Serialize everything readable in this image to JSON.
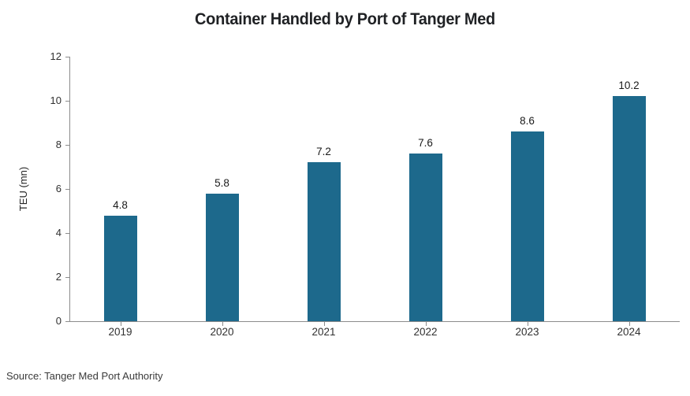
{
  "chart_data": {
    "type": "bar",
    "title": "Container Handled by Port of Tanger Med",
    "categories": [
      "2019",
      "2020",
      "2021",
      "2022",
      "2023",
      "2024"
    ],
    "values": [
      4.8,
      5.8,
      7.2,
      7.6,
      8.6,
      10.2
    ],
    "value_labels": [
      "4.8",
      "5.8",
      "7.2",
      "7.6",
      "8.6",
      "10.2"
    ],
    "xlabel": "",
    "ylabel": "TEU (mn)",
    "ylim": [
      0,
      12
    ],
    "yticks": [
      0,
      2,
      4,
      6,
      8,
      10,
      12
    ],
    "grid": false,
    "legend": "none",
    "bar_color": "#1d698c",
    "axis_color": "#8c8c8c",
    "source": "Source: Tanger Med Port Authority"
  }
}
